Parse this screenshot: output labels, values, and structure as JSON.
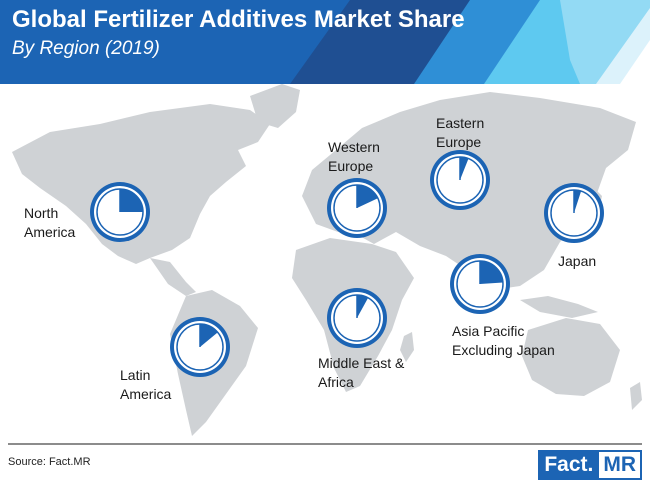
{
  "header": {
    "title": "Global Fertilizer Additives Market Share",
    "subtitle": "By Region (2019)"
  },
  "footer": {
    "source": "Source: Fact.MR",
    "logo_left": "Fact.",
    "logo_right": "MR"
  },
  "colors": {
    "accent": "#1c64b4",
    "light_accent": "#5ec9f0",
    "map": "#cfd2d5"
  },
  "chart_data": {
    "type": "pie",
    "title": "Global Fertilizer Additives Market Share",
    "subtitle": "By Region (2019)",
    "unit": "percent share (estimated from filled pie wedges; not printed)",
    "regions": [
      {
        "name": "North America",
        "label": "North\nAmerica",
        "share": 25
      },
      {
        "name": "Western Europe",
        "label": "Western\nEurope",
        "share": 18
      },
      {
        "name": "Eastern Europe",
        "label": "Eastern\nEurope",
        "share": 6
      },
      {
        "name": "Japan",
        "label": "Japan",
        "share": 5
      },
      {
        "name": "Asia Pacific Excluding Japan",
        "label": "Asia Pacific\nExcluding Japan",
        "share": 24
      },
      {
        "name": "Middle East & Africa",
        "label": "Middle East &\nAfrica",
        "share": 8
      },
      {
        "name": "Latin America",
        "label": "Latin\nAmerica",
        "share": 14
      }
    ]
  }
}
